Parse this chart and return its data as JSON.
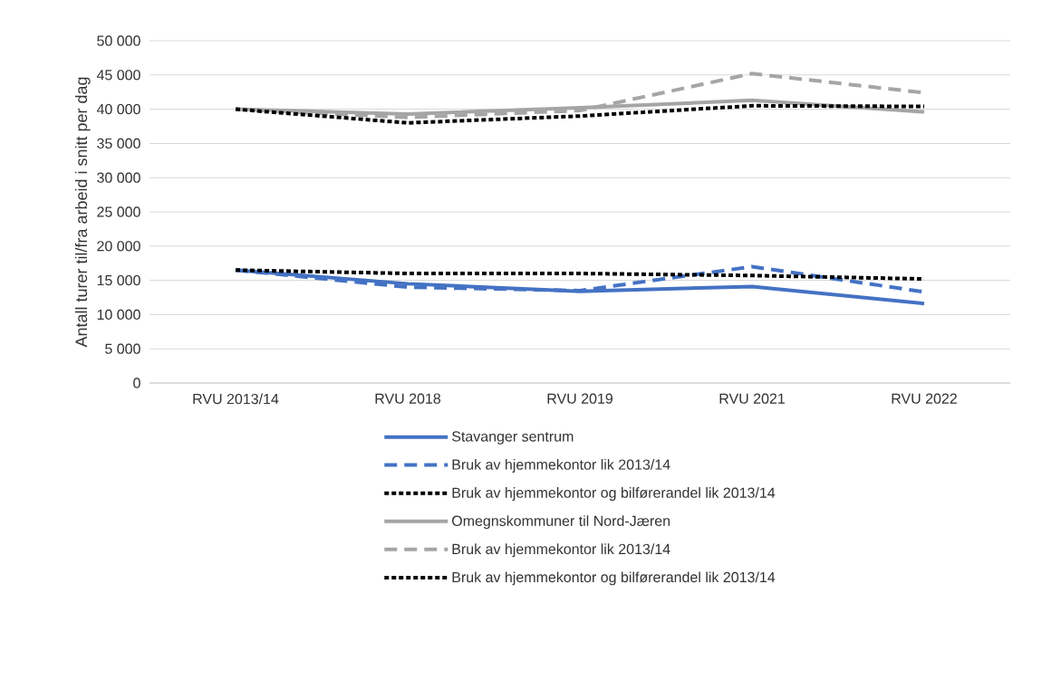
{
  "chart_data": {
    "type": "line",
    "ylabel": "Antall turer til/fra arbeid i snitt per dag",
    "categories": [
      "RVU 2013/14",
      "RVU 2018",
      "RVU 2019",
      "RVU 2021",
      "RVU 2022"
    ],
    "ylim": [
      0,
      50000
    ],
    "yticks": [
      {
        "value": 0,
        "label": "0"
      },
      {
        "value": 5000,
        "label": "5 000"
      },
      {
        "value": 10000,
        "label": "10 000"
      },
      {
        "value": 15000,
        "label": "15 000"
      },
      {
        "value": 20000,
        "label": "20 000"
      },
      {
        "value": 25000,
        "label": "25 000"
      },
      {
        "value": 30000,
        "label": "30 000"
      },
      {
        "value": 35000,
        "label": "35 000"
      },
      {
        "value": 40000,
        "label": "40 000"
      },
      {
        "value": 45000,
        "label": "45 000"
      },
      {
        "value": 50000,
        "label": "50 000"
      }
    ],
    "grid": "y",
    "legend": "bottom",
    "marker": "none",
    "series": [
      {
        "name": "Stavanger sentrum",
        "color": "#4472c4",
        "line_style": "solid",
        "values": [
          16500,
          14500,
          13400,
          14100,
          11600
        ]
      },
      {
        "name": "Bruk av hjemmekontor lik 2013/14",
        "color": "#4472c4",
        "line_style": "dashed",
        "values": [
          16500,
          14000,
          13500,
          17000,
          13300
        ]
      },
      {
        "name": "Bruk av hjemmekontor og bilførerandel lik 2013/14",
        "color": "#000000",
        "line_style": "dotted",
        "values": [
          16500,
          16000,
          16000,
          15700,
          15200
        ]
      },
      {
        "name": "Omegnskommuner til Nord-Jæren",
        "color": "#a5a5a5",
        "line_style": "solid",
        "values": [
          40000,
          39300,
          40200,
          41300,
          39600
        ]
      },
      {
        "name": "Bruk av hjemmekontor lik 2013/14",
        "color": "#a5a5a5",
        "line_style": "dashed",
        "values": [
          40000,
          38800,
          39800,
          45200,
          42400
        ]
      },
      {
        "name": "Bruk av hjemmekontor og bilførerandel lik 2013/14",
        "color": "#000000",
        "line_style": "dotted",
        "values": [
          40000,
          38000,
          39000,
          40500,
          40400
        ]
      }
    ]
  }
}
